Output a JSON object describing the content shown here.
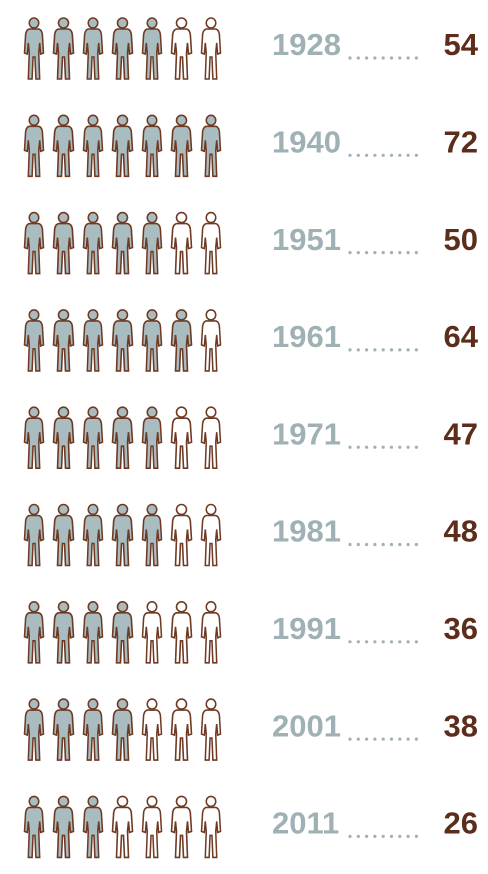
{
  "chart_data": {
    "type": "pictogram",
    "categories": [
      "1928",
      "1940",
      "1951",
      "1961",
      "1971",
      "1981",
      "1991",
      "2001",
      "2011"
    ],
    "values": [
      54,
      72,
      50,
      64,
      47,
      48,
      36,
      38,
      26
    ],
    "color": "#a9bdc1",
    "outline_color": "#6e3a24",
    "label_color": "#9fb1b4",
    "value_color": "#5b2d1a"
  }
}
